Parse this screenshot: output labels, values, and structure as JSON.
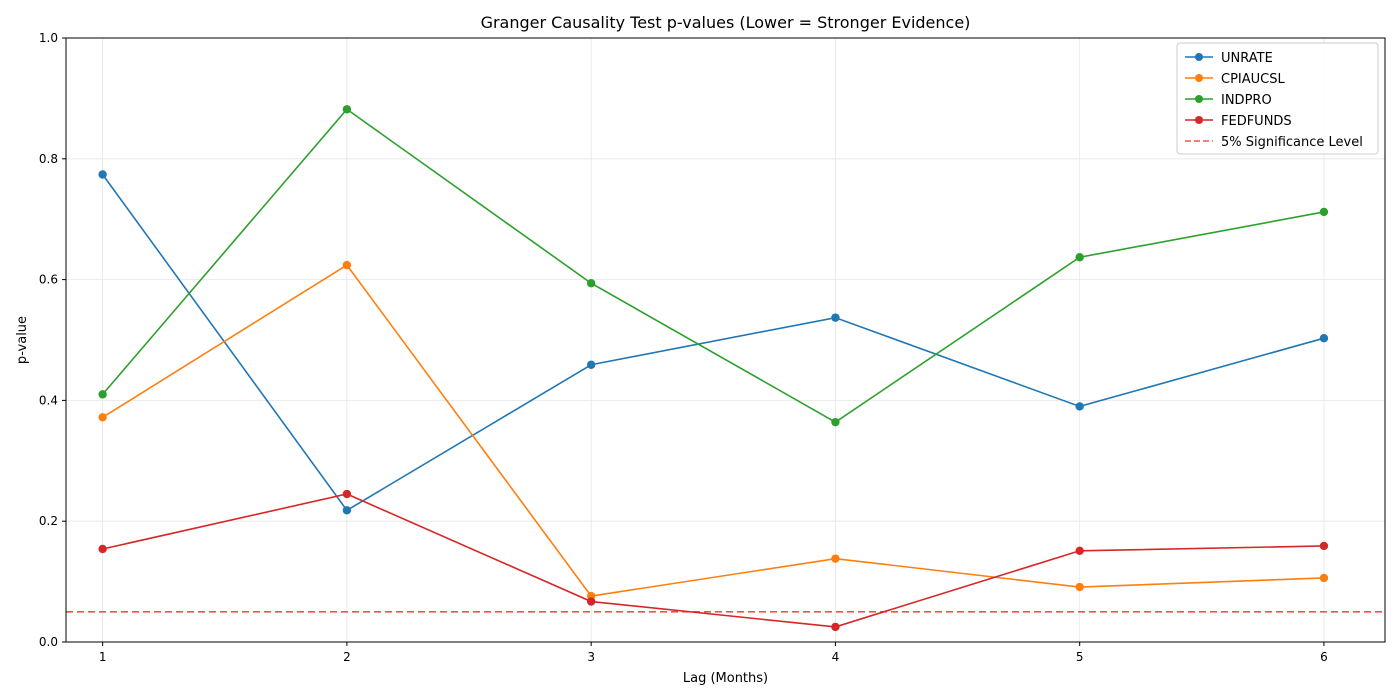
{
  "chart_data": {
    "type": "line",
    "title": "Granger Causality Test p-values (Lower = Stronger Evidence)",
    "xlabel": "Lag (Months)",
    "ylabel": "p-value",
    "x": [
      1,
      2,
      3,
      4,
      5,
      6
    ],
    "xlim": [
      0.85,
      6.25
    ],
    "ylim": [
      0,
      1.0
    ],
    "xticks": [
      "1",
      "2",
      "3",
      "4",
      "5",
      "6"
    ],
    "yticks": [
      "0.0",
      "0.2",
      "0.4",
      "0.6",
      "0.8",
      "1.0"
    ],
    "grid": true,
    "legend_position": "top-right",
    "series": [
      {
        "name": "UNRATE",
        "color": "#1f77b4",
        "values": [
          0.774,
          0.218,
          0.459,
          0.537,
          0.39,
          0.503
        ]
      },
      {
        "name": "CPIAUCSL",
        "color": "#ff7f0e",
        "values": [
          0.372,
          0.624,
          0.076,
          0.138,
          0.091,
          0.106
        ]
      },
      {
        "name": "INDPRO",
        "color": "#2ca02c",
        "values": [
          0.41,
          0.882,
          0.594,
          0.364,
          0.637,
          0.712
        ]
      },
      {
        "name": "FEDFUNDS",
        "color": "#d62728",
        "values": [
          0.154,
          0.245,
          0.067,
          0.025,
          0.151,
          0.159
        ]
      }
    ],
    "reference_line": {
      "name": "5% Significance Level",
      "value": 0.05,
      "color": "#ef5350",
      "style": "dashed"
    }
  }
}
